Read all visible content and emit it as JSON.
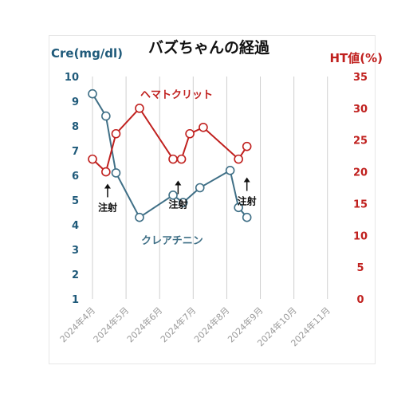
{
  "chart_data": {
    "type": "line",
    "title": "バズちゃんの経過",
    "y_left": {
      "label": "Cre(mg/dl)",
      "ylim": [
        1,
        10
      ],
      "ticks": [
        1,
        2,
        3,
        4,
        5,
        6,
        7,
        8,
        9,
        10
      ],
      "color": "#1f5a7a"
    },
    "y_right": {
      "label": "HT値(%)",
      "ylim": [
        0,
        35
      ],
      "ticks": [
        0,
        5,
        10,
        15,
        20,
        25,
        30,
        35
      ],
      "color": "#c0201e"
    },
    "x_labels": [
      "2024年4月",
      "2024年5月",
      "2024年6月",
      "2024年7月",
      "2024年8月",
      "2024年9月",
      "2024年10月",
      "2024年11月"
    ],
    "x_range": [
      4,
      11.6
    ],
    "grid": true,
    "series": [
      {
        "name": "クレアチニン",
        "axis": "left",
        "color": "#3f6f86",
        "x": [
          4.0,
          4.4,
          4.7,
          5.4,
          6.4,
          6.7,
          7.2,
          8.1,
          8.35,
          8.6
        ],
        "values": [
          9.3,
          8.4,
          6.1,
          4.3,
          5.2,
          4.9,
          5.5,
          6.2,
          4.7,
          4.3
        ]
      },
      {
        "name": "ヘマトクリット",
        "axis": "right",
        "color": "#c0201e",
        "x": [
          4.0,
          4.4,
          4.7,
          5.4,
          6.4,
          6.65,
          6.9,
          7.3,
          8.35,
          8.6
        ],
        "values": [
          22,
          20,
          26,
          30,
          22,
          22,
          26,
          27,
          22,
          24
        ]
      }
    ],
    "annotations": [
      {
        "text": "注射",
        "x": 4.45,
        "y_right": 16.5
      },
      {
        "text": "注射",
        "x": 6.55,
        "y_right": 17.0
      },
      {
        "text": "注射",
        "x": 8.6,
        "y_right": 17.5
      }
    ]
  }
}
